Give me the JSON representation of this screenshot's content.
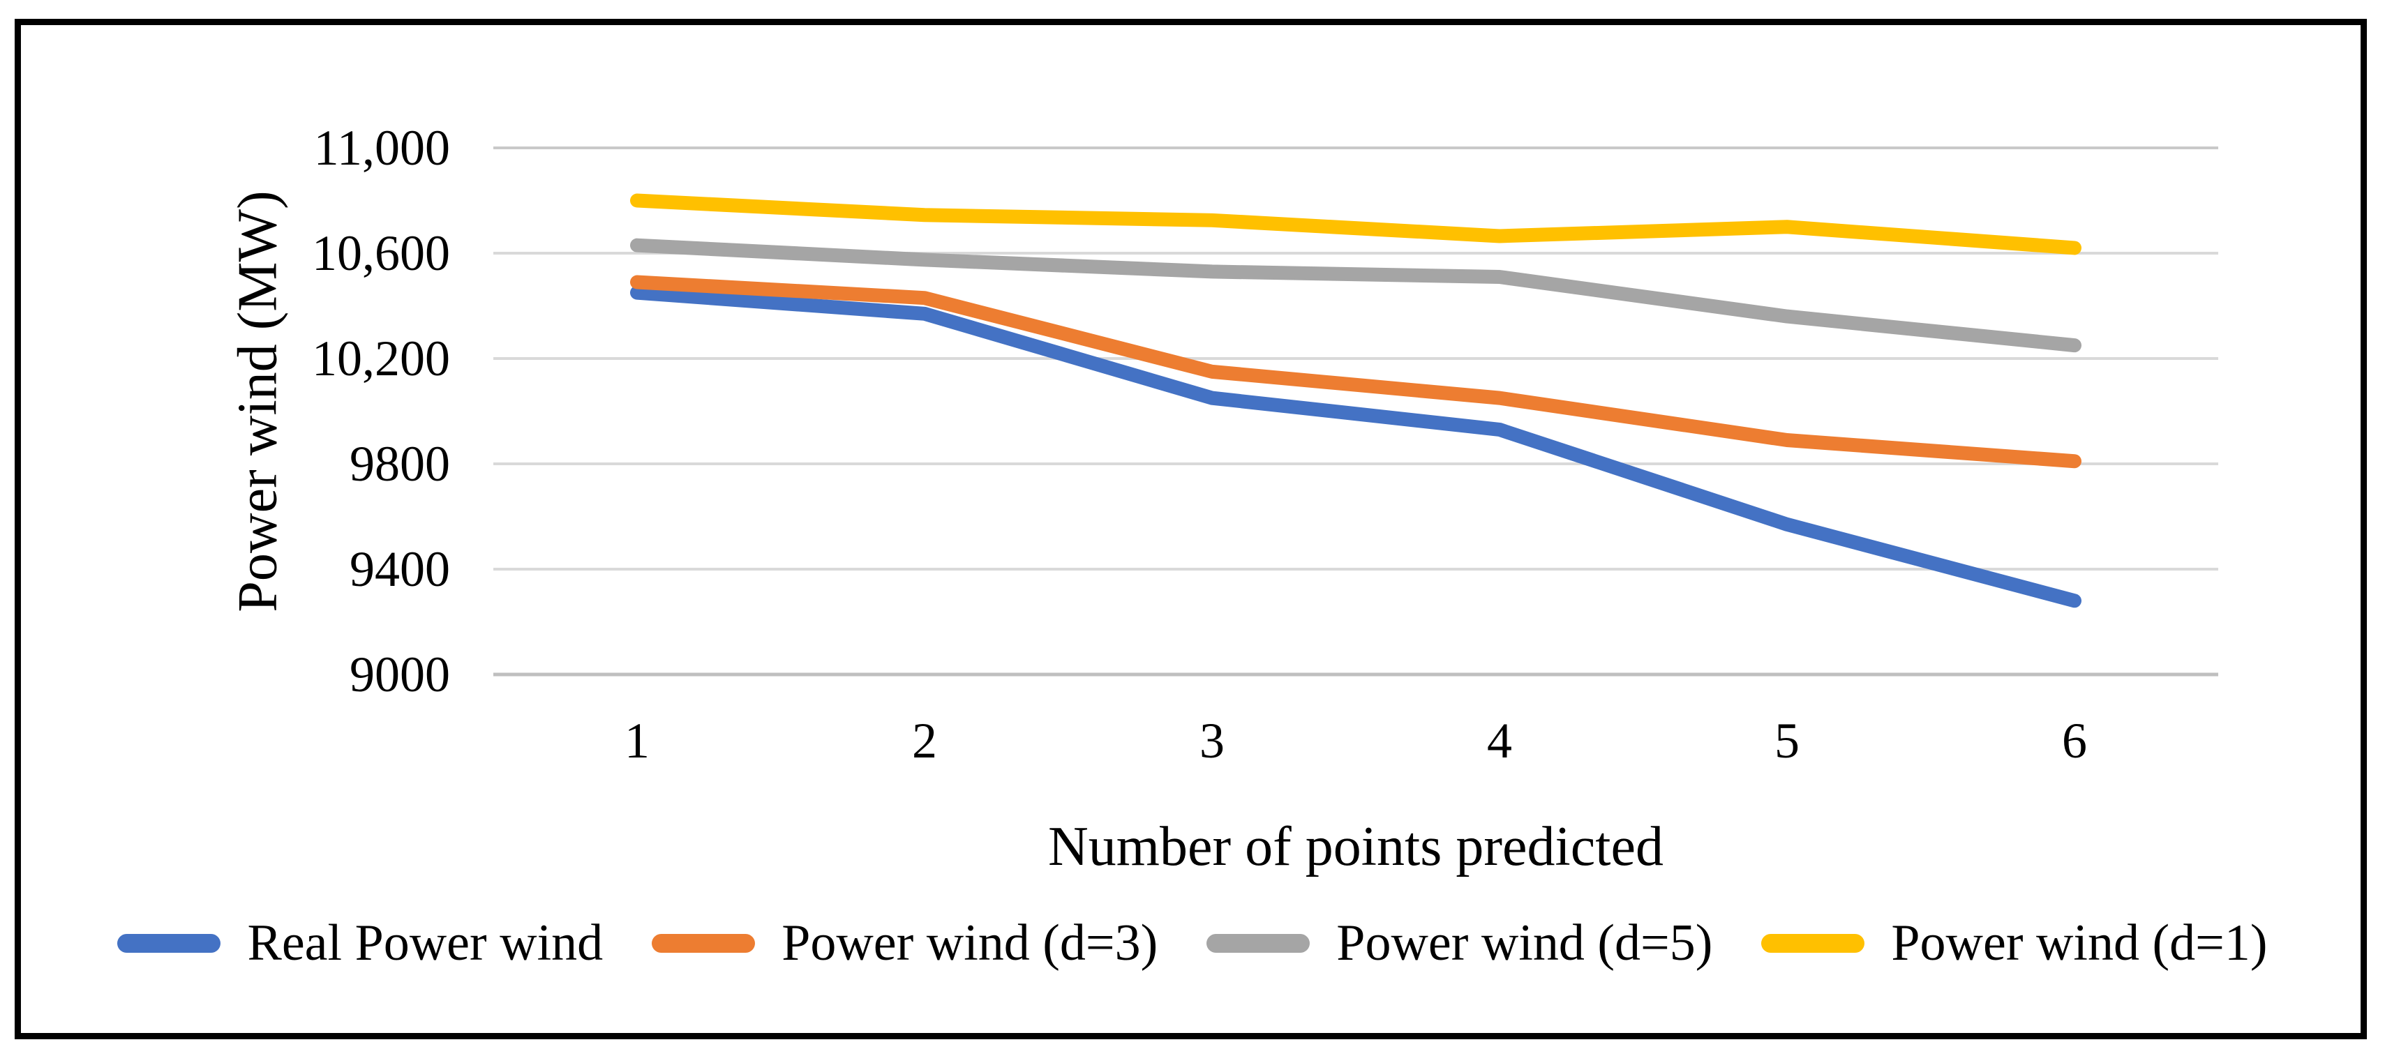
{
  "figure": {
    "kind": "framed chart figure",
    "border_color": "#000000",
    "background_color": "#ffffff"
  },
  "chart_data": {
    "type": "line",
    "title": "",
    "xlabel": "Number of points predicted",
    "ylabel": "Power wind (MW)",
    "categories": [
      "1",
      "2",
      "3",
      "4",
      "5",
      "6"
    ],
    "ylim": [
      9000,
      11000
    ],
    "grid": true,
    "gridline_color": "#D9D9D9",
    "top_gridline_color": "#C9C9C9",
    "axis_line_color": "#BFBFBF",
    "legend_position": "bottom",
    "y_ticks": [
      {
        "value": 9000,
        "label": "9000"
      },
      {
        "value": 9400,
        "label": "9400"
      },
      {
        "value": 9800,
        "label": "9800"
      },
      {
        "value": 10200,
        "label": "10,200"
      },
      {
        "value": 10600,
        "label": "10,600"
      },
      {
        "value": 11000,
        "label": "11,000"
      }
    ],
    "series": [
      {
        "name": "Real Power wind",
        "color": "#4472C4",
        "values": [
          10450,
          10370,
          10050,
          9930,
          9570,
          9280
        ]
      },
      {
        "name": "Power wind (d=3)",
        "color": "#ED7D31",
        "values": [
          10490,
          10430,
          10150,
          10050,
          9890,
          9810
        ]
      },
      {
        "name": "Power wind (d=5)",
        "color": "#A5A5A5",
        "values": [
          10630,
          10575,
          10530,
          10510,
          10360,
          10250
        ]
      },
      {
        "name": "Power wind (d=1)",
        "color": "#FFC000",
        "values": [
          10800,
          10745,
          10725,
          10665,
          10700,
          10620
        ]
      }
    ]
  }
}
